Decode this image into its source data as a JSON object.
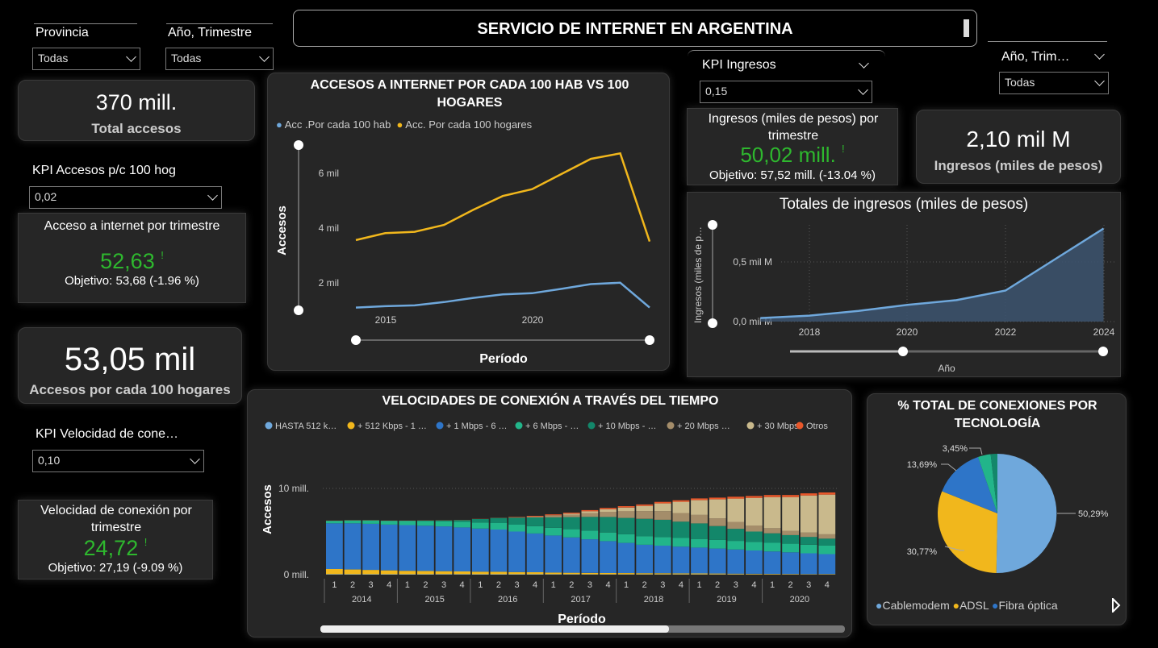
{
  "filters": {
    "provincia": {
      "label": "Provincia",
      "value": "Todas"
    },
    "anio_trimestre": {
      "label": "Año, Trimestre",
      "value": "Todas"
    },
    "anio_trim_right": {
      "label": "Año, Trim…",
      "value": "Todas"
    }
  },
  "title": "SERVICIO DE INTERNET EN ARGENTINA",
  "kpi_total_accesos": {
    "value": "370 mill.",
    "label": "Total accesos"
  },
  "kpi_accesos_hog_select": {
    "label": "KPI Accesos p/c 100 hog",
    "value": "0,02"
  },
  "kpi_acceso_trimestre": {
    "title": "Acceso a internet por trimestre",
    "value": "52,63",
    "flag": "!",
    "goal": "Objetivo: 53,68 (-1.96 %)"
  },
  "kpi_accesos_100_hogares": {
    "value": "53,05 mil",
    "label": "Accesos por cada 100 hogares"
  },
  "kpi_velocidad_select": {
    "label": "KPI Velocidad de cone…",
    "value": "0,10"
  },
  "kpi_velocidad_trimestre": {
    "title": "Velocidad de conexión por trimestre",
    "value": "24,72",
    "flag": "!",
    "goal": "Objetivo: 27,19 (-9.09 %)"
  },
  "kpi_ingresos_select": {
    "label": "KPI Ingresos",
    "value": "0,15"
  },
  "kpi_ingresos_trimestre": {
    "title": "Ingresos (miles de pesos) por trimestre",
    "value": "50,02 mill.",
    "flag": "!",
    "goal": "Objetivo: 57,52 mill. (-13.04 %)"
  },
  "kpi_ingresos_total": {
    "value": "2,10 mil M",
    "label": "Ingresos (miles de pesos)"
  },
  "colors": {
    "blue_line": "#6fa8dc",
    "yellow_line": "#f1b71c",
    "green_kpi": "#2eb82e",
    "card_bg": "#262626"
  },
  "chart_accesos": {
    "title": "ACCESOS A INTERNET POR CADA 100 HAB VS 100 HOGARES",
    "legend": [
      "Acc .Por cada 100 hab",
      "Acc. Por cada 100 hogares"
    ],
    "ylabel": "Accesos",
    "xlabel": "Período",
    "yticks": [
      "2 mil",
      "4 mil",
      "6 mil"
    ],
    "xticks": [
      "2015",
      "2020"
    ]
  },
  "chart_ingresos": {
    "title": "Totales de ingresos (miles de pesos)",
    "ylabel": "Ingresos (miles de p…",
    "xlabel": "Año",
    "yticks": [
      "0,0 mil M",
      "0,5 mil M"
    ],
    "xticks": [
      "2018",
      "2020",
      "2022",
      "2024"
    ]
  },
  "chart_velocidades": {
    "title": "VELOCIDADES DE CONEXIÓN A TRAVÉS DEL TIEMPO",
    "legend": [
      "HASTA 512 k…",
      "+ 512 Kbps - 1 …",
      "+ 1 Mbps - 6 …",
      "+ 6 Mbps - …",
      "+ 10 Mbps - …",
      "+ 20 Mbps …",
      "+ 30 Mbps",
      "Otros"
    ],
    "ylabel": "Accesos",
    "xlabel": "Período",
    "yticks": [
      "0 mill.",
      "10 mill."
    ],
    "quarters": [
      "1",
      "2",
      "3",
      "4"
    ],
    "years": [
      "2014",
      "2015",
      "2016",
      "2017",
      "2018",
      "2019",
      "2020"
    ]
  },
  "chart_tecnologia": {
    "title": "% TOTAL DE CONEXIONES POR TECNOLOGÍA",
    "legend": [
      "Cablemodem",
      "ADSL",
      "Fibra óptica"
    ],
    "labels": [
      "50,29%",
      "30,77%",
      "13,69%",
      "3,45%"
    ]
  },
  "chart_data": [
    {
      "type": "line",
      "title": "ACCESOS A INTERNET POR CADA 100 HAB VS 100 HOGARES",
      "xlabel": "Período",
      "ylabel": "Accesos",
      "x": [
        2014,
        2015,
        2016,
        2017,
        2018,
        2019,
        2020,
        2021,
        2022,
        2023,
        2024
      ],
      "ylim": [
        1000,
        7000
      ],
      "series": [
        {
          "name": "Acc .Por cada 100 hab",
          "color": "#6fa8dc",
          "values": [
            1100,
            1150,
            1180,
            1300,
            1450,
            1580,
            1620,
            1780,
            1950,
            2000,
            1100
          ]
        },
        {
          "name": "Acc. Por cada 100 hogares",
          "color": "#f1b71c",
          "values": [
            3550,
            3800,
            3850,
            4100,
            4650,
            5150,
            5400,
            5950,
            6500,
            6700,
            3500
          ]
        }
      ]
    },
    {
      "type": "area",
      "title": "Totales de ingresos (miles de pesos)",
      "xlabel": "Año",
      "ylabel": "Ingresos (miles de p…",
      "x": [
        2017,
        2018,
        2019,
        2020,
        2021,
        2022,
        2023,
        2024
      ],
      "ylim": [
        0,
        0.8
      ],
      "series": [
        {
          "name": "Ingresos",
          "color": "#6fa8dc",
          "values": [
            0.03,
            0.05,
            0.09,
            0.14,
            0.18,
            0.26,
            0.52,
            0.78
          ]
        }
      ]
    },
    {
      "type": "bar",
      "stacked": true,
      "title": "VELOCIDADES DE CONEXIÓN A TRAVÉS DEL TIEMPO",
      "xlabel": "Período",
      "ylabel": "Accesos",
      "ylim": [
        0,
        11
      ],
      "categories": [
        "2014 1",
        "2014 2",
        "2014 3",
        "2014 4",
        "2015 1",
        "2015 2",
        "2015 3",
        "2015 4",
        "2016 1",
        "2016 2",
        "2016 3",
        "2016 4",
        "2017 1",
        "2017 2",
        "2017 3",
        "2017 4",
        "2018 1",
        "2018 2",
        "2018 3",
        "2018 4",
        "2019 1",
        "2019 2",
        "2019 3",
        "2019 4",
        "2020 1",
        "2020 2",
        "2020 3",
        "2020 4"
      ],
      "series": [
        {
          "name": "HASTA 512 k…",
          "color": "#6fa8dc",
          "values": [
            0.05,
            0.05,
            0.05,
            0.05,
            0.05,
            0.05,
            0.05,
            0.05,
            0.05,
            0.05,
            0.05,
            0.05,
            0.04,
            0.04,
            0.04,
            0.04,
            0.04,
            0.04,
            0.04,
            0.04,
            0.04,
            0.04,
            0.04,
            0.03,
            0.03,
            0.03,
            0.03,
            0.03
          ]
        },
        {
          "name": "+ 512 Kbps - 1 …",
          "color": "#f1b71c",
          "values": [
            0.6,
            0.55,
            0.5,
            0.45,
            0.4,
            0.38,
            0.35,
            0.33,
            0.3,
            0.28,
            0.25,
            0.23,
            0.2,
            0.18,
            0.16,
            0.15,
            0.14,
            0.13,
            0.12,
            0.11,
            0.1,
            0.09,
            0.08,
            0.07,
            0.06,
            0.06,
            0.05,
            0.05
          ]
        },
        {
          "name": "+ 1 Mbps - 6 …",
          "color": "#2e75c8",
          "values": [
            5.3,
            5.35,
            5.35,
            5.3,
            5.3,
            5.25,
            5.2,
            5.1,
            5.0,
            4.9,
            4.7,
            4.5,
            4.3,
            4.1,
            3.9,
            3.7,
            3.5,
            3.3,
            3.2,
            3.1,
            3.0,
            2.9,
            2.8,
            2.7,
            2.6,
            2.5,
            2.4,
            2.3
          ]
        },
        {
          "name": "+ 6 Mbps - …",
          "color": "#22b58a",
          "values": [
            0.3,
            0.35,
            0.4,
            0.45,
            0.5,
            0.55,
            0.6,
            0.65,
            0.7,
            0.75,
            0.8,
            0.85,
            0.9,
            0.95,
            1.0,
            1.0,
            1.0,
            1.0,
            1.0,
            1.0,
            1.0,
            1.0,
            1.0,
            1.0,
            1.0,
            1.0,
            1.0,
            1.0
          ]
        },
        {
          "name": "+ 10 Mbps - …",
          "color": "#13876a",
          "values": [
            0.0,
            0.0,
            0.0,
            0.0,
            0.0,
            0.05,
            0.1,
            0.2,
            0.4,
            0.6,
            0.8,
            1.0,
            1.2,
            1.4,
            1.6,
            1.8,
            1.9,
            2.0,
            2.0,
            1.9,
            1.8,
            1.6,
            1.4,
            1.2,
            1.1,
            1.0,
            0.9,
            0.8
          ]
        },
        {
          "name": "+ 20 Mbps …",
          "color": "#a48d6a",
          "values": [
            0.0,
            0.0,
            0.0,
            0.0,
            0.0,
            0.0,
            0.0,
            0.0,
            0.0,
            0.0,
            0.05,
            0.1,
            0.2,
            0.3,
            0.45,
            0.6,
            0.8,
            0.9,
            1.0,
            1.0,
            1.0,
            0.9,
            0.8,
            0.7,
            0.6,
            0.5,
            0.5,
            0.5
          ]
        },
        {
          "name": "+ 30 Mbps",
          "color": "#c9b98c",
          "values": [
            0.0,
            0.0,
            0.0,
            0.0,
            0.0,
            0.0,
            0.0,
            0.0,
            0.0,
            0.0,
            0.0,
            0.0,
            0.05,
            0.1,
            0.2,
            0.3,
            0.4,
            0.6,
            0.9,
            1.3,
            1.7,
            2.2,
            2.7,
            3.2,
            3.6,
            3.9,
            4.3,
            4.6
          ]
        },
        {
          "name": "Otros",
          "color": "#e8572a",
          "values": [
            0.02,
            0.02,
            0.02,
            0.02,
            0.02,
            0.02,
            0.02,
            0.02,
            0.02,
            0.02,
            0.05,
            0.08,
            0.1,
            0.12,
            0.14,
            0.15,
            0.16,
            0.17,
            0.18,
            0.18,
            0.2,
            0.2,
            0.22,
            0.22,
            0.24,
            0.24,
            0.25,
            0.25
          ]
        }
      ]
    },
    {
      "type": "pie",
      "title": "% TOTAL DE CONEXIONES POR TECNOLOGÍA",
      "legend": [
        "Cablemodem",
        "ADSL",
        "Fibra óptica"
      ],
      "slices": [
        {
          "label": "Cablemodem",
          "value": 50.29,
          "color": "#6fa8dc"
        },
        {
          "label": "ADSL",
          "value": 30.77,
          "color": "#f1b71c"
        },
        {
          "label": "Fibra óptica",
          "value": 13.69,
          "color": "#2e75c8"
        },
        {
          "label": "",
          "value": 3.45,
          "color": "#22b58a"
        },
        {
          "label": "",
          "value": 1.8,
          "color": "#13876a"
        }
      ]
    }
  ]
}
